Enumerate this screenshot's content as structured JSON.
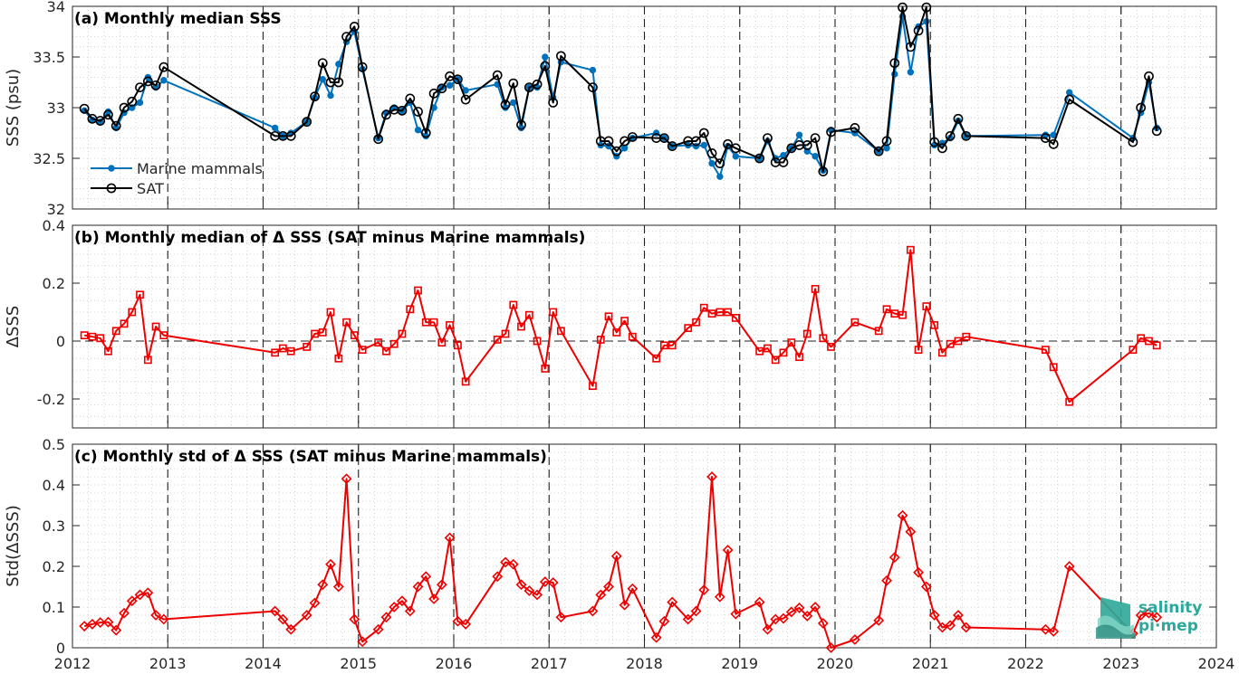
{
  "colors": {
    "marine": "#0072BD",
    "sat": "#000000",
    "diff": "#ee0000",
    "logo": "#2ea89a"
  },
  "logo": {
    "line1": "salinity",
    "line2": "pi·mep"
  },
  "chart_data": [
    {
      "type": "line",
      "title": "(a) Monthly median SSS",
      "xlabel": "",
      "ylabel": "SSS (psu)",
      "xlim": [
        2012,
        2024
      ],
      "ylim": [
        32,
        34
      ],
      "yticks": [
        32,
        32.5,
        33,
        33.5,
        34
      ],
      "ytick_labels": [
        "32",
        "32.5",
        "33",
        "33.5",
        "34"
      ],
      "grid": true,
      "year_lines": true,
      "legend": "left",
      "series": [
        {
          "name": "Marine mammals",
          "marker": "dot",
          "color": "#0072BD",
          "x": [
            2012.125,
            2012.208,
            2012.292,
            2012.375,
            2012.458,
            2012.542,
            2012.625,
            2012.708,
            2012.792,
            2012.875,
            2012.958,
            2014.125,
            2014.208,
            2014.292,
            2014.458,
            2014.542,
            2014.625,
            2014.708,
            2014.792,
            2014.875,
            2014.958,
            2015.042,
            2015.208,
            2015.292,
            2015.375,
            2015.458,
            2015.542,
            2015.625,
            2015.708,
            2015.792,
            2015.875,
            2015.958,
            2016.042,
            2016.125,
            2016.458,
            2016.542,
            2016.625,
            2016.708,
            2016.792,
            2016.875,
            2016.958,
            2017.042,
            2017.125,
            2017.458,
            2017.542,
            2017.625,
            2017.708,
            2017.792,
            2017.875,
            2018.125,
            2018.208,
            2018.292,
            2018.458,
            2018.542,
            2018.625,
            2018.708,
            2018.792,
            2018.875,
            2018.958,
            2019.208,
            2019.292,
            2019.375,
            2019.458,
            2019.542,
            2019.625,
            2019.708,
            2019.792,
            2019.875,
            2019.958,
            2020.208,
            2020.458,
            2020.542,
            2020.625,
            2020.708,
            2020.792,
            2020.875,
            2020.958,
            2021.042,
            2021.125,
            2021.208,
            2021.292,
            2021.375,
            2022.208,
            2022.292,
            2022.458,
            2023.125,
            2023.208,
            2023.292,
            2023.375
          ],
          "y": [
            32.97,
            32.88,
            32.86,
            32.96,
            32.8,
            32.95,
            33.0,
            33.05,
            33.3,
            33.2,
            33.27,
            32.8,
            32.72,
            32.75,
            32.86,
            33.1,
            33.28,
            33.12,
            33.43,
            33.65,
            33.75,
            33.38,
            32.7,
            32.95,
            33.0,
            32.97,
            33.05,
            32.78,
            32.72,
            33.0,
            33.2,
            33.22,
            33.28,
            33.17,
            33.23,
            33.0,
            33.05,
            32.8,
            33.2,
            33.2,
            33.5,
            33.1,
            33.45,
            33.37,
            32.63,
            32.62,
            32.52,
            32.6,
            32.7,
            32.75,
            32.7,
            32.62,
            32.63,
            32.62,
            32.63,
            32.45,
            32.32,
            32.62,
            32.52,
            32.5,
            32.67,
            32.5,
            32.53,
            32.6,
            32.73,
            32.57,
            32.52,
            32.38,
            32.78,
            32.75,
            32.57,
            32.6,
            33.33,
            33.9,
            33.35,
            33.8,
            33.85,
            32.63,
            32.65,
            32.7,
            32.87,
            32.72,
            32.73,
            32.73,
            33.15,
            32.7,
            32.95,
            33.25,
            32.8
          ]
        },
        {
          "name": "SAT",
          "marker": "circle",
          "color": "#000000",
          "x": [
            2012.125,
            2012.208,
            2012.292,
            2012.375,
            2012.458,
            2012.542,
            2012.625,
            2012.708,
            2012.792,
            2012.875,
            2012.958,
            2014.125,
            2014.208,
            2014.292,
            2014.458,
            2014.542,
            2014.625,
            2014.708,
            2014.792,
            2014.875,
            2014.958,
            2015.042,
            2015.208,
            2015.292,
            2015.375,
            2015.458,
            2015.542,
            2015.625,
            2015.708,
            2015.792,
            2015.875,
            2015.958,
            2016.042,
            2016.125,
            2016.458,
            2016.542,
            2016.625,
            2016.708,
            2016.792,
            2016.875,
            2016.958,
            2017.042,
            2017.125,
            2017.458,
            2017.542,
            2017.625,
            2017.708,
            2017.792,
            2017.875,
            2018.125,
            2018.208,
            2018.292,
            2018.458,
            2018.542,
            2018.625,
            2018.708,
            2018.792,
            2018.875,
            2018.958,
            2019.208,
            2019.292,
            2019.375,
            2019.458,
            2019.542,
            2019.625,
            2019.708,
            2019.792,
            2019.875,
            2019.958,
            2020.208,
            2020.458,
            2020.542,
            2020.625,
            2020.708,
            2020.792,
            2020.875,
            2020.958,
            2021.042,
            2021.125,
            2021.208,
            2021.292,
            2021.375,
            2022.208,
            2022.292,
            2022.458,
            2023.125,
            2023.208,
            2023.292,
            2023.375
          ],
          "y": [
            32.99,
            32.89,
            32.87,
            32.93,
            32.82,
            33.0,
            33.06,
            33.2,
            33.26,
            33.22,
            33.4,
            32.72,
            32.72,
            32.72,
            32.86,
            33.11,
            33.44,
            33.25,
            33.25,
            33.7,
            33.8,
            33.4,
            32.69,
            32.93,
            32.98,
            32.97,
            33.09,
            32.96,
            32.75,
            33.14,
            33.19,
            33.31,
            33.28,
            33.08,
            33.32,
            33.03,
            33.24,
            32.83,
            33.2,
            33.23,
            33.41,
            33.05,
            33.51,
            33.2,
            32.67,
            32.67,
            32.57,
            32.67,
            32.71,
            32.7,
            32.7,
            32.62,
            32.67,
            32.67,
            32.75,
            32.55,
            32.45,
            32.64,
            32.6,
            32.5,
            32.7,
            32.46,
            32.46,
            32.6,
            32.63,
            32.63,
            32.7,
            32.37,
            32.76,
            32.8,
            32.57,
            32.67,
            33.44,
            33.99,
            33.6,
            33.76,
            33.99,
            32.66,
            32.6,
            32.72,
            32.89,
            32.72,
            32.7,
            32.64,
            33.08,
            32.66,
            33.0,
            33.31,
            32.77
          ]
        }
      ]
    },
    {
      "type": "line",
      "title": "(b) Monthly median of Δ SSS (SAT minus Marine mammals)",
      "xlabel": "",
      "ylabel": "ΔSSS",
      "xlim": [
        2012,
        2024
      ],
      "ylim": [
        -0.3,
        0.4
      ],
      "yticks": [
        -0.2,
        0,
        0.2,
        0.4
      ],
      "ytick_labels": [
        "-0.2",
        "0",
        "0.2",
        "0.4"
      ],
      "grid": true,
      "year_lines": true,
      "zero_line": true,
      "series": [
        {
          "name": "",
          "marker": "square",
          "color": "#ee0000",
          "x": [
            2012.125,
            2012.208,
            2012.292,
            2012.375,
            2012.458,
            2012.542,
            2012.625,
            2012.708,
            2012.792,
            2012.875,
            2012.958,
            2014.125,
            2014.208,
            2014.292,
            2014.458,
            2014.542,
            2014.625,
            2014.708,
            2014.792,
            2014.875,
            2014.958,
            2015.042,
            2015.208,
            2015.292,
            2015.375,
            2015.458,
            2015.542,
            2015.625,
            2015.708,
            2015.792,
            2015.875,
            2015.958,
            2016.042,
            2016.125,
            2016.458,
            2016.542,
            2016.625,
            2016.708,
            2016.792,
            2016.875,
            2016.958,
            2017.042,
            2017.125,
            2017.458,
            2017.542,
            2017.625,
            2017.708,
            2017.792,
            2017.875,
            2018.125,
            2018.208,
            2018.292,
            2018.458,
            2018.542,
            2018.625,
            2018.708,
            2018.792,
            2018.875,
            2018.958,
            2019.208,
            2019.292,
            2019.375,
            2019.458,
            2019.542,
            2019.625,
            2019.708,
            2019.792,
            2019.875,
            2019.958,
            2020.208,
            2020.458,
            2020.542,
            2020.625,
            2020.708,
            2020.792,
            2020.875,
            2020.958,
            2021.042,
            2021.125,
            2021.208,
            2021.292,
            2021.375,
            2022.208,
            2022.292,
            2022.458,
            2023.125,
            2023.208,
            2023.292,
            2023.375
          ],
          "y": [
            0.02,
            0.015,
            0.01,
            -0.035,
            0.035,
            0.06,
            0.1,
            0.16,
            -0.065,
            0.05,
            0.02,
            -0.04,
            -0.025,
            -0.035,
            -0.02,
            0.025,
            0.03,
            0.1,
            -0.06,
            0.065,
            0.02,
            -0.03,
            -0.005,
            -0.035,
            -0.01,
            0.025,
            0.11,
            0.175,
            0.065,
            0.065,
            -0.005,
            0.055,
            -0.015,
            -0.14,
            0.005,
            0.025,
            0.125,
            0.05,
            0.09,
            0.0,
            -0.095,
            0.1,
            0.035,
            -0.155,
            0.005,
            0.085,
            0.03,
            0.07,
            0.015,
            -0.06,
            -0.015,
            -0.015,
            0.045,
            0.065,
            0.115,
            0.095,
            0.1,
            0.1,
            0.08,
            -0.035,
            -0.025,
            -0.065,
            -0.04,
            -0.005,
            -0.055,
            0.025,
            0.18,
            0.01,
            -0.02,
            0.065,
            0.035,
            0.11,
            0.095,
            0.09,
            0.315,
            -0.03,
            0.12,
            0.055,
            -0.04,
            -0.01,
            0.0,
            0.015,
            -0.03,
            -0.09,
            -0.21,
            -0.03,
            0.01,
            0.0,
            -0.015
          ]
        }
      ]
    },
    {
      "type": "line",
      "title": "(c) Monthly std of Δ SSS (SAT minus Marine mammals)",
      "xlabel": "",
      "ylabel": "Std(ΔSSS)",
      "xlim": [
        2012,
        2024
      ],
      "ylim": [
        0,
        0.5
      ],
      "yticks": [
        0,
        0.1,
        0.2,
        0.3,
        0.4,
        0.5
      ],
      "ytick_labels": [
        "0",
        "0.1",
        "0.2",
        "0.3",
        "0.4",
        "0.5"
      ],
      "xticks": [
        2012,
        2013,
        2014,
        2015,
        2016,
        2017,
        2018,
        2019,
        2020,
        2021,
        2022,
        2023,
        2024
      ],
      "xtick_labels": [
        "2012",
        "2013",
        "2014",
        "2015",
        "2016",
        "2017",
        "2018",
        "2019",
        "2020",
        "2021",
        "2022",
        "2023",
        "2024"
      ],
      "grid": true,
      "year_lines": true,
      "series": [
        {
          "name": "",
          "marker": "diamond",
          "color": "#ee0000",
          "x": [
            2012.125,
            2012.208,
            2012.292,
            2012.375,
            2012.458,
            2012.542,
            2012.625,
            2012.708,
            2012.792,
            2012.875,
            2012.958,
            2014.125,
            2014.208,
            2014.292,
            2014.458,
            2014.542,
            2014.625,
            2014.708,
            2014.792,
            2014.875,
            2014.958,
            2015.042,
            2015.208,
            2015.292,
            2015.375,
            2015.458,
            2015.542,
            2015.625,
            2015.708,
            2015.792,
            2015.875,
            2015.958,
            2016.042,
            2016.125,
            2016.458,
            2016.542,
            2016.625,
            2016.708,
            2016.792,
            2016.875,
            2016.958,
            2017.042,
            2017.125,
            2017.458,
            2017.542,
            2017.625,
            2017.708,
            2017.792,
            2017.875,
            2018.125,
            2018.208,
            2018.292,
            2018.458,
            2018.542,
            2018.625,
            2018.708,
            2018.792,
            2018.875,
            2018.958,
            2019.208,
            2019.292,
            2019.375,
            2019.458,
            2019.542,
            2019.625,
            2019.708,
            2019.792,
            2019.875,
            2019.958,
            2020.208,
            2020.458,
            2020.542,
            2020.625,
            2020.708,
            2020.792,
            2020.875,
            2020.958,
            2021.042,
            2021.125,
            2021.208,
            2021.292,
            2021.375,
            2022.208,
            2022.292,
            2022.458,
            2023.125,
            2023.208,
            2023.292,
            2023.375
          ],
          "y": [
            0.053,
            0.058,
            0.062,
            0.063,
            0.043,
            0.085,
            0.115,
            0.13,
            0.135,
            0.08,
            0.07,
            0.09,
            0.07,
            0.045,
            0.08,
            0.11,
            0.155,
            0.205,
            0.15,
            0.415,
            0.07,
            0.015,
            0.045,
            0.075,
            0.1,
            0.115,
            0.09,
            0.15,
            0.175,
            0.12,
            0.155,
            0.27,
            0.065,
            0.058,
            0.175,
            0.21,
            0.205,
            0.155,
            0.14,
            0.13,
            0.162,
            0.16,
            0.075,
            0.09,
            0.13,
            0.15,
            0.225,
            0.105,
            0.145,
            0.025,
            0.065,
            0.112,
            0.07,
            0.09,
            0.142,
            0.42,
            0.125,
            0.24,
            0.083,
            0.112,
            0.045,
            0.07,
            0.072,
            0.088,
            0.098,
            0.078,
            0.1,
            0.06,
            0.0,
            0.02,
            0.067,
            0.165,
            0.222,
            0.325,
            0.285,
            0.185,
            0.15,
            0.08,
            0.05,
            0.055,
            0.08,
            0.05,
            0.045,
            0.04,
            0.2,
            0.035,
            0.08,
            0.085,
            0.075
          ]
        }
      ]
    }
  ]
}
